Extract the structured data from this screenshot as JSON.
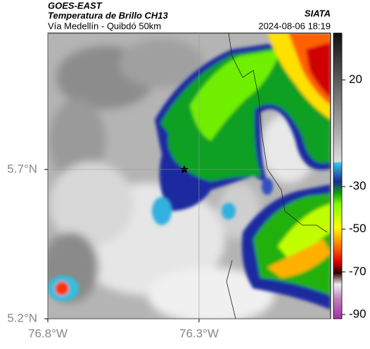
{
  "header": {
    "source": "GOES-EAST",
    "product": "Temperatura de Brillo CH13",
    "region": "Vía Medellín - Quibdó 50km",
    "agency": "SIATA",
    "datetime": "2024-08-06 18:19"
  },
  "map": {
    "lon_lim": [
      -76.8,
      -75.865
    ],
    "lat_lim": [
      5.2,
      6.157
    ],
    "lon_ticks": [
      {
        "value": -76.8,
        "label": "76.8°W"
      },
      {
        "value": -76.3,
        "label": "76.3°W"
      }
    ],
    "lat_ticks": [
      {
        "value": 5.7,
        "label": "5.7°N"
      },
      {
        "value": 5.2,
        "label": "5.2°N"
      }
    ]
  },
  "colorbar": {
    "range": [
      -92,
      42
    ],
    "ticks": [
      20,
      -30,
      -50,
      -70,
      -90
    ]
  }
}
